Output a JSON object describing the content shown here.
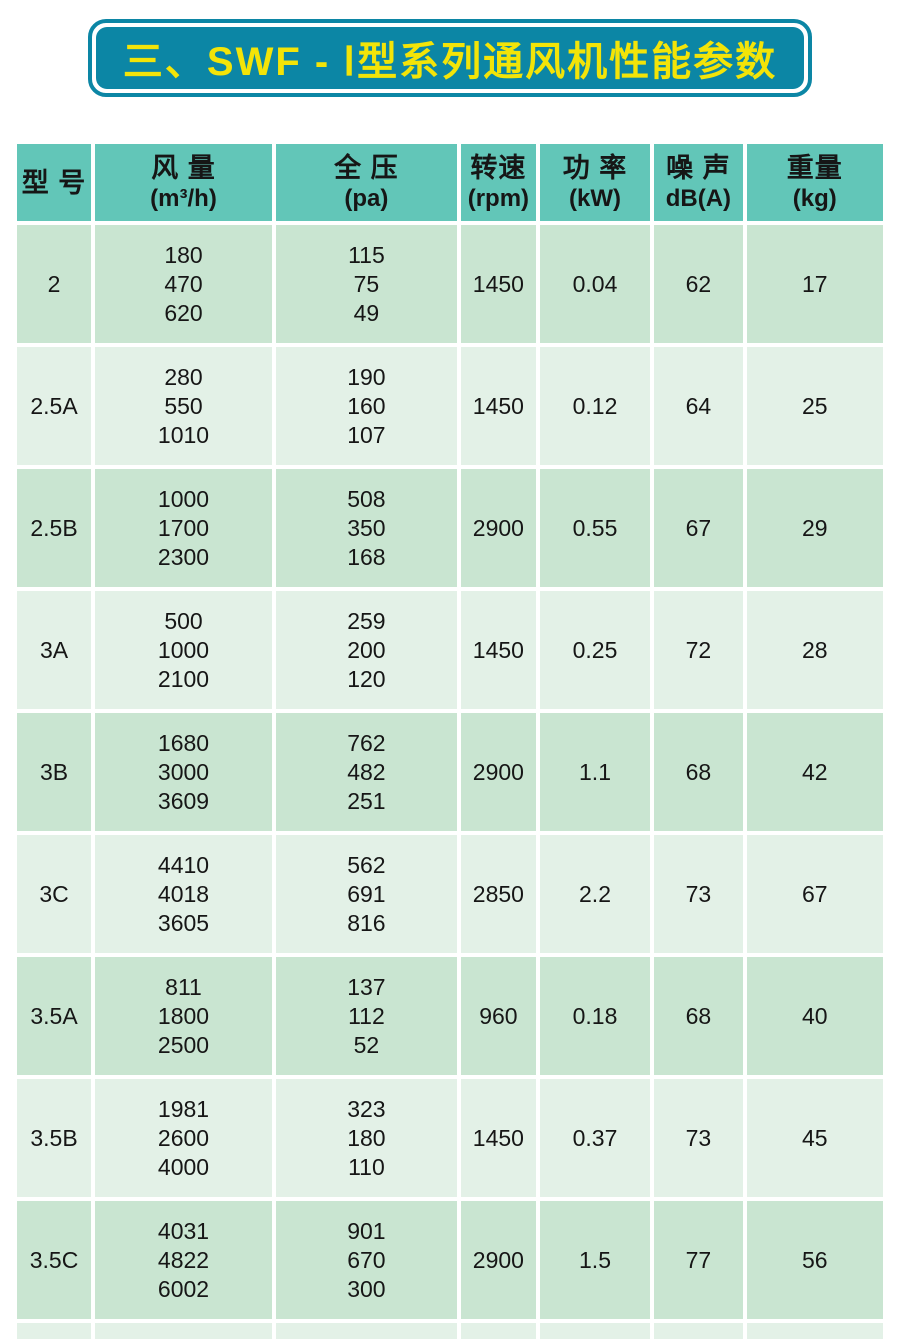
{
  "title": "三、SWF - Ⅰ型系列通风机性能参数",
  "colors": {
    "banner-teal": "#0c86a5",
    "banner-yellow": "#f3e408",
    "header-teal": "#62c6b8",
    "row-dark": "#c9e5d1",
    "row-light": "#e3f1e7",
    "text": "#161616",
    "page-bg": "#ffffff"
  },
  "table": {
    "columns": [
      {
        "label": "型 号",
        "unit": ""
      },
      {
        "label": "风 量",
        "unit": "(m³/h)"
      },
      {
        "label": "全 压",
        "unit": "(pa)"
      },
      {
        "label": "转速",
        "unit": "(rpm)"
      },
      {
        "label": "功 率",
        "unit": "(kW)"
      },
      {
        "label": "噪 声",
        "unit": "dB(A)"
      },
      {
        "label": "重量",
        "unit": "(kg)"
      }
    ],
    "rows": [
      {
        "model": "2",
        "airflow": [
          "180",
          "470",
          "620"
        ],
        "pressure": [
          "115",
          "75",
          "49"
        ],
        "rpm": "1450",
        "power": "0.04",
        "noise": "62",
        "weight": "17"
      },
      {
        "model": "2.5A",
        "airflow": [
          "280",
          "550",
          "1010"
        ],
        "pressure": [
          "190",
          "160",
          "107"
        ],
        "rpm": "1450",
        "power": "0.12",
        "noise": "64",
        "weight": "25"
      },
      {
        "model": "2.5B",
        "airflow": [
          "1000",
          "1700",
          "2300"
        ],
        "pressure": [
          "508",
          "350",
          "168"
        ],
        "rpm": "2900",
        "power": "0.55",
        "noise": "67",
        "weight": "29"
      },
      {
        "model": "3A",
        "airflow": [
          "500",
          "1000",
          "2100"
        ],
        "pressure": [
          "259",
          "200",
          "120"
        ],
        "rpm": "1450",
        "power": "0.25",
        "noise": "72",
        "weight": "28"
      },
      {
        "model": "3B",
        "airflow": [
          "1680",
          "3000",
          "3609"
        ],
        "pressure": [
          "762",
          "482",
          "251"
        ],
        "rpm": "2900",
        "power": "1.1",
        "noise": "68",
        "weight": "42"
      },
      {
        "model": "3C",
        "airflow": [
          "4410",
          "4018",
          "3605"
        ],
        "pressure": [
          "562",
          "691",
          "816"
        ],
        "rpm": "2850",
        "power": "2.2",
        "noise": "73",
        "weight": "67"
      },
      {
        "model": "3.5A",
        "airflow": [
          "811",
          "1800",
          "2500"
        ],
        "pressure": [
          "137",
          "112",
          "52"
        ],
        "rpm": "960",
        "power": "0.18",
        "noise": "68",
        "weight": "40"
      },
      {
        "model": "3.5B",
        "airflow": [
          "1981",
          "2600",
          "4000"
        ],
        "pressure": [
          "323",
          "180",
          "110"
        ],
        "rpm": "1450",
        "power": "0.37",
        "noise": "73",
        "weight": "45"
      },
      {
        "model": "3.5C",
        "airflow": [
          "4031",
          "4822",
          "6002"
        ],
        "pressure": [
          "901",
          "670",
          "300"
        ],
        "rpm": "2900",
        "power": "1.5",
        "noise": "77",
        "weight": "56"
      }
    ]
  }
}
